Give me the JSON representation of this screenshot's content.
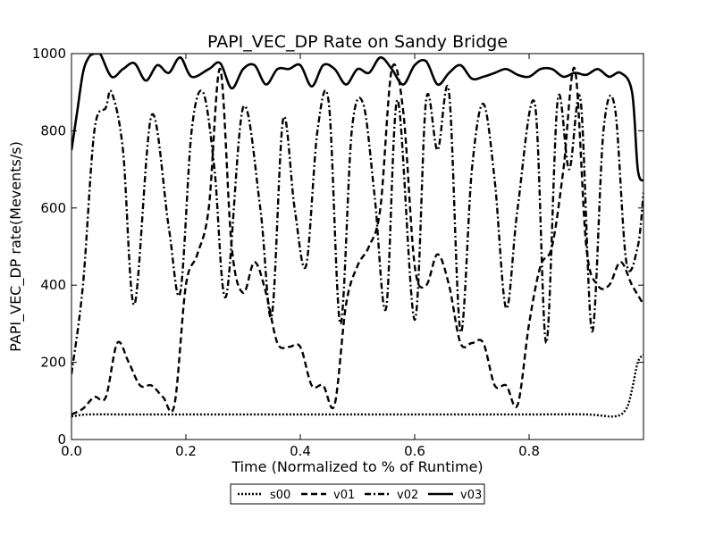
{
  "chart_data": {
    "type": "line",
    "title": "PAPI_VEC_DP Rate on Sandy Bridge",
    "xlabel": "Time (Normalized to % of Runtime)",
    "ylabel": "PAPI_VEC_DP rate(Mevents/s)",
    "xlim": [
      0.0,
      1.0
    ],
    "ylim": [
      0,
      1000
    ],
    "xticks": [
      "0.0",
      "0.2",
      "0.4",
      "0.6",
      "0.8"
    ],
    "yticks": [
      "0",
      "200",
      "400",
      "600",
      "800",
      "1000"
    ],
    "grid": false,
    "legend_position": "bottom-center",
    "series": [
      {
        "name": "s00",
        "style": "dotted",
        "x": [
          0.0,
          0.01,
          0.03,
          0.1,
          0.2,
          0.3,
          0.4,
          0.5,
          0.6,
          0.7,
          0.8,
          0.9,
          0.95,
          0.97,
          0.98,
          0.99,
          1.0
        ],
        "y": [
          60,
          62,
          65,
          65,
          65,
          65,
          65,
          65,
          65,
          65,
          65,
          65,
          60,
          80,
          130,
          200,
          220
        ]
      },
      {
        "name": "v01",
        "style": "dashed",
        "x": [
          0.0,
          0.02,
          0.04,
          0.06,
          0.08,
          0.1,
          0.12,
          0.14,
          0.16,
          0.18,
          0.2,
          0.22,
          0.24,
          0.26,
          0.28,
          0.3,
          0.32,
          0.34,
          0.36,
          0.38,
          0.4,
          0.42,
          0.44,
          0.46,
          0.48,
          0.5,
          0.52,
          0.54,
          0.56,
          0.58,
          0.6,
          0.62,
          0.64,
          0.66,
          0.68,
          0.7,
          0.72,
          0.74,
          0.76,
          0.78,
          0.8,
          0.82,
          0.84,
          0.86,
          0.88,
          0.9,
          0.92,
          0.94,
          0.96,
          0.98,
          1.0
        ],
        "y": [
          65,
          80,
          110,
          110,
          250,
          200,
          140,
          140,
          110,
          90,
          400,
          480,
          600,
          960,
          500,
          380,
          460,
          380,
          250,
          240,
          240,
          140,
          140,
          90,
          350,
          450,
          500,
          600,
          960,
          850,
          450,
          400,
          480,
          400,
          250,
          250,
          250,
          140,
          140,
          90,
          300,
          450,
          500,
          700,
          960,
          500,
          400,
          400,
          460,
          400,
          350
        ]
      },
      {
        "name": "v02",
        "style": "dashdot",
        "x": [
          0.0,
          0.02,
          0.04,
          0.06,
          0.07,
          0.09,
          0.11,
          0.14,
          0.17,
          0.19,
          0.21,
          0.23,
          0.25,
          0.27,
          0.3,
          0.33,
          0.35,
          0.37,
          0.39,
          0.41,
          0.43,
          0.45,
          0.47,
          0.49,
          0.51,
          0.53,
          0.55,
          0.57,
          0.6,
          0.62,
          0.64,
          0.66,
          0.68,
          0.7,
          0.72,
          0.74,
          0.76,
          0.78,
          0.81,
          0.83,
          0.85,
          0.87,
          0.89,
          0.91,
          0.93,
          0.95,
          0.97,
          0.99,
          1.0
        ],
        "y": [
          170,
          400,
          800,
          860,
          900,
          750,
          350,
          840,
          550,
          380,
          800,
          900,
          700,
          370,
          860,
          600,
          320,
          830,
          600,
          450,
          800,
          870,
          300,
          800,
          870,
          630,
          340,
          880,
          310,
          880,
          750,
          900,
          280,
          700,
          870,
          670,
          340,
          600,
          870,
          250,
          880,
          700,
          880,
          280,
          800,
          860,
          460,
          500,
          640
        ]
      },
      {
        "name": "v03",
        "style": "solid",
        "x": [
          0.0,
          0.01,
          0.02,
          0.03,
          0.04,
          0.05,
          0.07,
          0.09,
          0.11,
          0.13,
          0.15,
          0.17,
          0.19,
          0.21,
          0.24,
          0.26,
          0.28,
          0.3,
          0.32,
          0.34,
          0.36,
          0.38,
          0.4,
          0.42,
          0.44,
          0.46,
          0.48,
          0.5,
          0.52,
          0.54,
          0.56,
          0.58,
          0.6,
          0.62,
          0.64,
          0.66,
          0.68,
          0.7,
          0.72,
          0.74,
          0.76,
          0.78,
          0.8,
          0.82,
          0.84,
          0.86,
          0.88,
          0.9,
          0.92,
          0.94,
          0.96,
          0.98,
          0.99,
          1.0
        ],
        "y": [
          750,
          850,
          950,
          990,
          1000,
          1000,
          940,
          960,
          975,
          930,
          970,
          950,
          990,
          940,
          960,
          975,
          910,
          960,
          970,
          920,
          960,
          960,
          970,
          915,
          970,
          960,
          920,
          960,
          950,
          990,
          960,
          920,
          970,
          980,
          920,
          950,
          970,
          935,
          940,
          950,
          960,
          945,
          940,
          960,
          960,
          940,
          950,
          945,
          960,
          940,
          950,
          900,
          700,
          670
        ]
      }
    ]
  }
}
